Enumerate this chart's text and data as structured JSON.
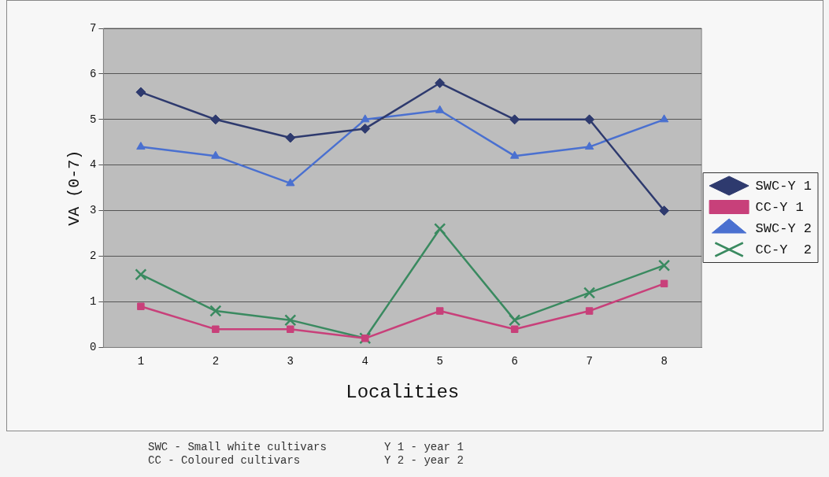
{
  "chart_data": {
    "type": "line",
    "xlabel": "Localities",
    "ylabel": "VA (0-7)",
    "categories": [
      "1",
      "2",
      "3",
      "4",
      "5",
      "6",
      "7",
      "8"
    ],
    "ylim": [
      0,
      7
    ],
    "yticks": [
      0,
      1,
      2,
      3,
      4,
      5,
      6,
      7
    ],
    "grid": "y",
    "legend": "right",
    "line_style": "solid",
    "series": [
      {
        "name": "SWC-Y 1",
        "color": "#2e3a6e",
        "marker": "diamond",
        "values": [
          5.6,
          5.0,
          4.6,
          4.8,
          5.8,
          5.0,
          5.0,
          3.0
        ]
      },
      {
        "name": "CC-Y 1",
        "color": "#c8407a",
        "marker": "square",
        "values": [
          0.9,
          0.4,
          0.4,
          0.2,
          0.8,
          0.4,
          0.8,
          1.4
        ]
      },
      {
        "name": "SWC-Y 2",
        "color": "#4a70d0",
        "marker": "triangle",
        "values": [
          4.4,
          4.2,
          3.6,
          5.0,
          5.2,
          4.2,
          4.4,
          5.0
        ]
      },
      {
        "name": "CC-Y  2",
        "color": "#3a8a60",
        "marker": "cross",
        "values": [
          1.6,
          0.8,
          0.6,
          0.2,
          2.6,
          0.6,
          1.2,
          1.8
        ]
      }
    ],
    "annotations": [
      "SWC - Small white cultivars",
      "Y 1 - year 1",
      "CC - Coloured cultivars",
      "Y 2 - year 2"
    ]
  }
}
